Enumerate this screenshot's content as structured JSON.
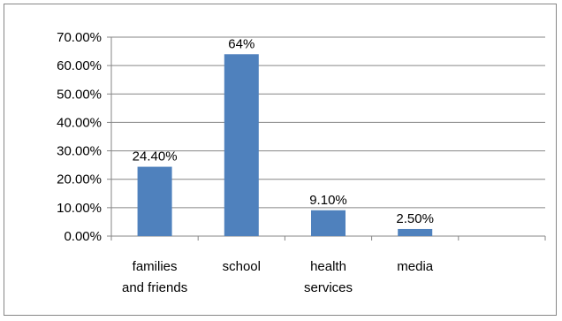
{
  "chart_data": {
    "type": "bar",
    "title": "",
    "xlabel": "",
    "ylabel": "",
    "categories": [
      [
        "families",
        "and friends"
      ],
      [
        "school"
      ],
      [
        "health",
        "services"
      ],
      [
        "media"
      ],
      []
    ],
    "values": [
      0.244,
      0.64,
      0.091,
      0.025,
      null
    ],
    "data_labels": [
      "24.40%",
      "64%",
      "9.10%",
      "2.50%",
      ""
    ],
    "ylim": [
      0,
      0.7
    ],
    "y_ticks": [
      {
        "value": 0.0,
        "label": "0.00%"
      },
      {
        "value": 0.1,
        "label": "10.00%"
      },
      {
        "value": 0.2,
        "label": "20.00%"
      },
      {
        "value": 0.3,
        "label": "30.00%"
      },
      {
        "value": 0.4,
        "label": "40.00%"
      },
      {
        "value": 0.5,
        "label": "50.00%"
      },
      {
        "value": 0.6,
        "label": "60.00%"
      },
      {
        "value": 0.7,
        "label": "70.00%"
      }
    ],
    "grid": true,
    "legend": "none",
    "bar_color": "#4F81BD",
    "grid_color": "#868686"
  }
}
